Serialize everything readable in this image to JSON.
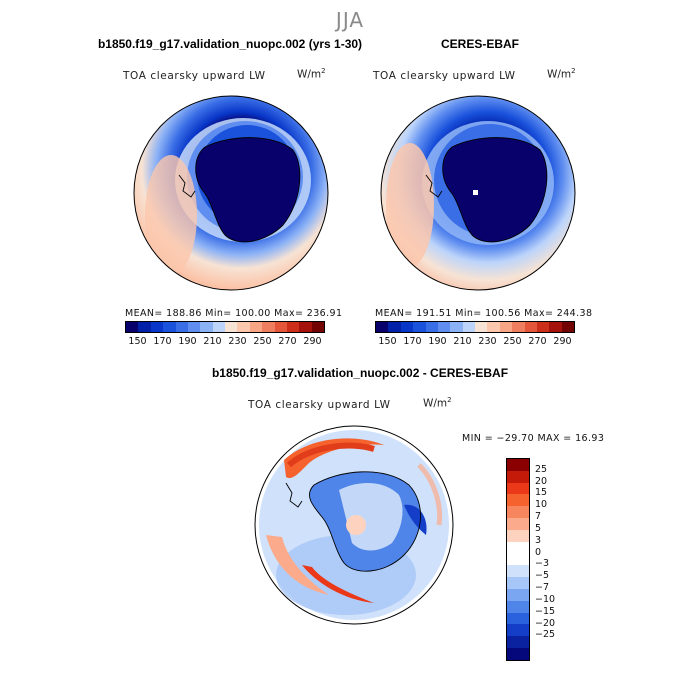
{
  "season": "JJA",
  "panel_left": {
    "title": "b1850.f19_g17.validation_nuopc.002 (yrs 1-30)",
    "variable": "TOA clearsky upward LW",
    "units": "W/m",
    "units_exp": "2",
    "stats": "MEAN= 188.86   Min= 100.00   Max= 236.91"
  },
  "panel_right": {
    "title": "CERES-EBAF",
    "variable": "TOA clearsky upward LW",
    "units": "W/m",
    "units_exp": "2",
    "stats": "MEAN= 191.51   Min= 100.56   Max= 244.38"
  },
  "panel_diff": {
    "title": "b1850.f19_g17.validation_nuopc.002 - CERES-EBAF",
    "variable": "TOA clearsky upward LW",
    "units": "W/m",
    "units_exp": "2",
    "stats": "MIN = −29.70  MAX =   16.93"
  },
  "colorbar_main": {
    "colors": [
      "#08006b",
      "#0020a8",
      "#0836c8",
      "#1a52dc",
      "#3a6ee6",
      "#5f8ef0",
      "#8cb2f6",
      "#bcd4fa",
      "#f7e3d4",
      "#fbc7ad",
      "#f8a585",
      "#ef7e60",
      "#e45639",
      "#cc2e1a",
      "#a5120c",
      "#720404"
    ],
    "tick_labels": [
      "150",
      "170",
      "190",
      "210",
      "230",
      "250",
      "270",
      "290"
    ]
  },
  "colorbar_diff": {
    "colors": [
      "#8a0000",
      "#c41a0a",
      "#ea3818",
      "#f5622e",
      "#f7865e",
      "#fbab8c",
      "#fdd3bf",
      "#ffffff",
      "#ffffff",
      "#cfe1fb",
      "#a6c6f7",
      "#7aa6f1",
      "#4f84e8",
      "#2a62dd",
      "#143ec8",
      "#0a21a0",
      "#05087a"
    ],
    "tick_labels": [
      "25",
      "20",
      "15",
      "10",
      "7",
      "5",
      "3",
      "0",
      "−3",
      "−5",
      "−7",
      "−10",
      "−15",
      "−20",
      "−25"
    ]
  }
}
